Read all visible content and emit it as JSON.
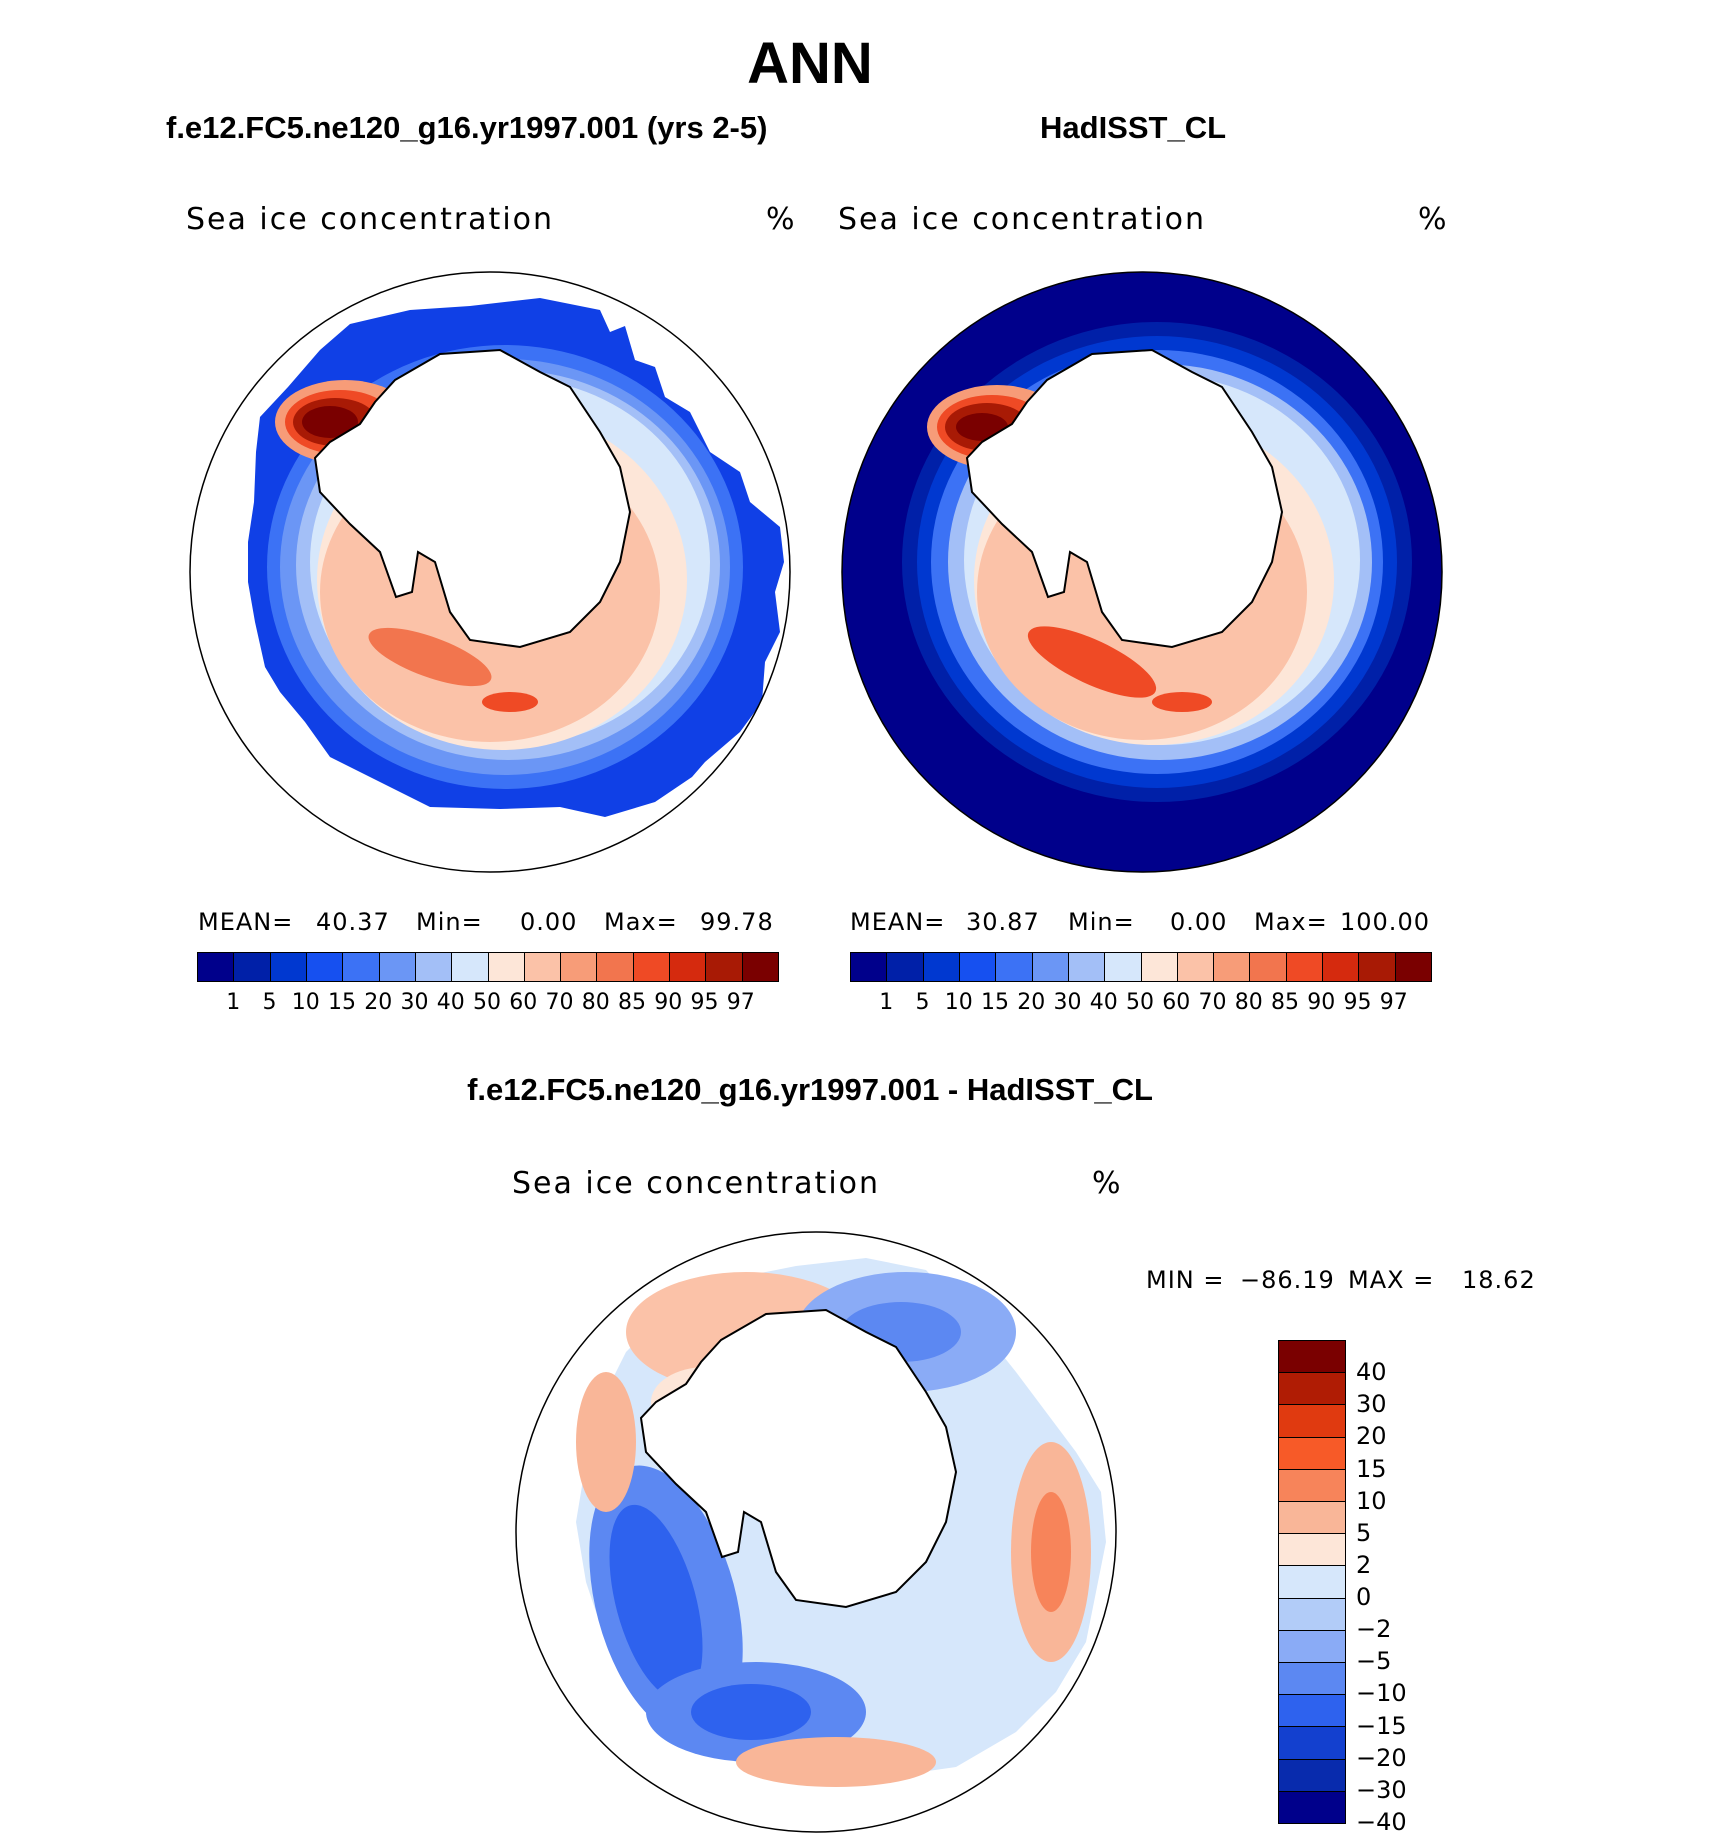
{
  "figure": {
    "title": "ANN",
    "left_subtitle": "f.e12.FC5.ne120_g16.yr1997.001 (yrs 2-5)",
    "right_subtitle": "HadISST_CL",
    "diff_subtitle": "f.e12.FC5.ne120_g16.yr1997.001 - HadISST_CL"
  },
  "panels": {
    "model": {
      "title": "Sea ice concentration",
      "units": "%",
      "mean_label": "MEAN=",
      "mean": "40.37",
      "min_label": "Min=",
      "min": "0.00",
      "max_label": "Max=",
      "max": "99.78"
    },
    "obs": {
      "title": "Sea ice concentration",
      "units": "%",
      "mean_label": "MEAN=",
      "mean": "30.87",
      "min_label": "Min=",
      "min": "0.00",
      "max_label": "Max=",
      "max": "100.00"
    },
    "diff": {
      "title": "Sea ice concentration",
      "units": "%",
      "min_label": "MIN =",
      "min": "−86.19",
      "max_label": "MAX =",
      "max": "18.62"
    }
  },
  "colorbars": {
    "concentration": {
      "colors": [
        "#00008b",
        "#0020a8",
        "#0038d0",
        "#1650f0",
        "#3c72f5",
        "#6b96f5",
        "#a3bff7",
        "#d6e7fb",
        "#fde6d8",
        "#fbc2a8",
        "#f79c78",
        "#f2754e",
        "#ef4a25",
        "#d52a0e",
        "#a81a05",
        "#7a0000"
      ],
      "ticks": [
        "1",
        "5",
        "10",
        "15",
        "20",
        "30",
        "40",
        "50",
        "60",
        "70",
        "80",
        "85",
        "90",
        "95",
        "97"
      ]
    },
    "difference": {
      "colors": [
        "#7a0000",
        "#b01c04",
        "#e03a10",
        "#f75a28",
        "#f7845a",
        "#f9b698",
        "#fde6d8",
        "#d6e7fb",
        "#b2ccf8",
        "#8aabf6",
        "#5c88f2",
        "#2e62ee",
        "#1340cf",
        "#082bad",
        "#00008b"
      ],
      "ticks": [
        "40",
        "30",
        "20",
        "15",
        "10",
        "5",
        "2",
        "0",
        "−2",
        "−5",
        "−10",
        "−15",
        "−20",
        "−30",
        "−40"
      ]
    }
  },
  "chart_data": {
    "type": "heatmap",
    "projection": "south-polar-stereographic",
    "maps": [
      {
        "name": "f.e12.FC5.ne120_g16.yr1997.001 (yrs 2-5)",
        "field": "Sea ice concentration",
        "units": "%",
        "mean": 40.37,
        "min": 0.0,
        "max": 99.78
      },
      {
        "name": "HadISST_CL",
        "field": "Sea ice concentration",
        "units": "%",
        "mean": 30.87,
        "min": 0.0,
        "max": 100.0
      },
      {
        "name": "f.e12.FC5.ne120_g16.yr1997.001 - HadISST_CL",
        "field": "Sea ice concentration",
        "units": "%",
        "min": -86.19,
        "max": 18.62
      }
    ]
  }
}
